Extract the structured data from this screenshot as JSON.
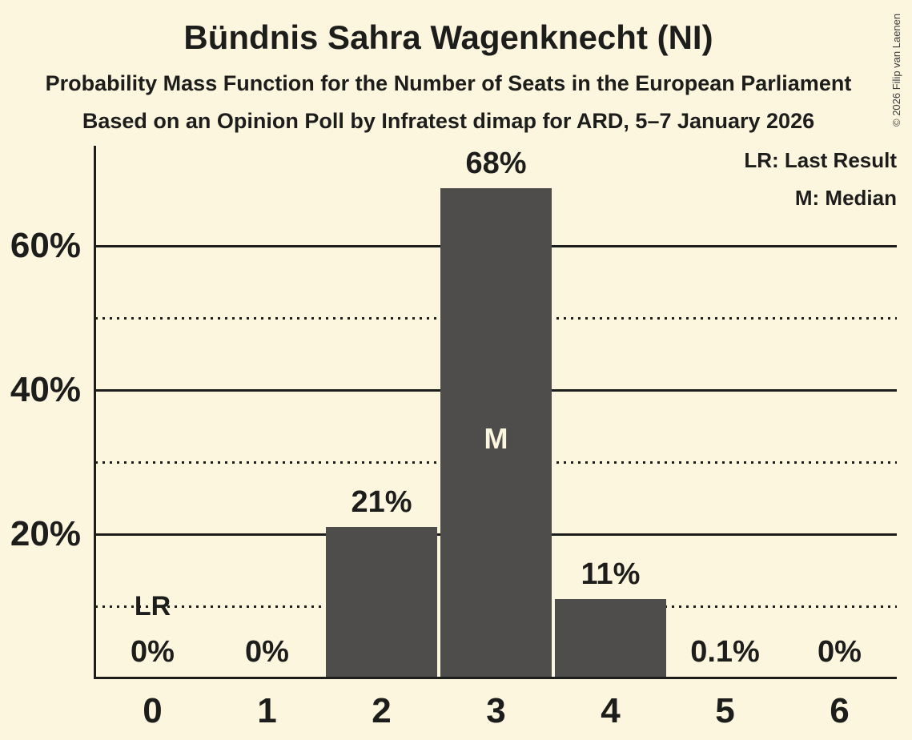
{
  "title": "Bündnis Sahra Wagenknecht (NI)",
  "subtitle": "Probability Mass Function for the Number of Seats in the European Parliament",
  "source_line": "Based on an Opinion Poll by Infratest dimap for ARD, 5–7 January 2026",
  "copyright": "© 2026 Filip van Laenen",
  "legend": {
    "lr": "LR: Last Result",
    "m": "M: Median"
  },
  "colors": {
    "background": "#FDF6DF",
    "bar": "#4E4D4C",
    "text": "#1D1D1B",
    "median_text": "#FDF6DF",
    "copyright_text": "#3B3B38"
  },
  "chart_data": {
    "type": "bar",
    "title": "Bündnis Sahra Wagenknecht (NI)",
    "subtitle": "Probability Mass Function for the Number of Seats in the European Parliament",
    "source": "Based on an Opinion Poll by Infratest dimap for ARD, 5–7 January 2026",
    "xlabel": "",
    "ylabel": "",
    "categories": [
      "0",
      "1",
      "2",
      "3",
      "4",
      "5",
      "6"
    ],
    "values": [
      0,
      0,
      21,
      68,
      11,
      0.1,
      0
    ],
    "bar_labels": [
      "0%",
      "0%",
      "21%",
      "68%",
      "11%",
      "0.1%",
      "0%"
    ],
    "ylim": [
      0,
      73.8
    ],
    "ytick_pcts": [
      20,
      40,
      60
    ],
    "ytick_labels": [
      "20%",
      "40%",
      "60%"
    ],
    "solid_gridline_pcts": [
      20,
      40,
      60
    ],
    "dotted_gridline_pcts": [
      10,
      30,
      50
    ],
    "legend_entries": [
      "LR: Last Result",
      "M: Median"
    ],
    "annotations": [
      {
        "label": "LR",
        "seat_index": 0,
        "meaning": "Last Result"
      },
      {
        "label": "M",
        "seat_index": 3,
        "meaning": "Median"
      }
    ]
  }
}
